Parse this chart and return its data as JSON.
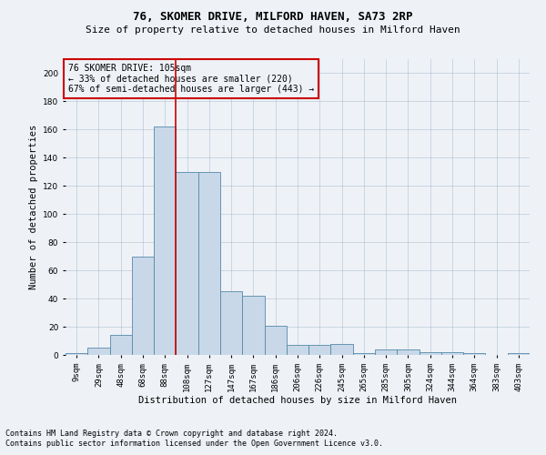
{
  "title": "76, SKOMER DRIVE, MILFORD HAVEN, SA73 2RP",
  "subtitle": "Size of property relative to detached houses in Milford Haven",
  "xlabel": "Distribution of detached houses by size in Milford Haven",
  "ylabel": "Number of detached properties",
  "footnote1": "Contains HM Land Registry data © Crown copyright and database right 2024.",
  "footnote2": "Contains public sector information licensed under the Open Government Licence v3.0.",
  "property_label": "76 SKOMER DRIVE: 105sqm",
  "annotation_line1": "← 33% of detached houses are smaller (220)",
  "annotation_line2": "67% of semi-detached houses are larger (443) →",
  "bar_color": "#c8d8e8",
  "bar_edge_color": "#5588aa",
  "marker_line_color": "#cc0000",
  "background_color": "#eef2f7",
  "categories": [
    "9sqm",
    "29sqm",
    "48sqm",
    "68sqm",
    "88sqm",
    "108sqm",
    "127sqm",
    "147sqm",
    "167sqm",
    "186sqm",
    "206sqm",
    "226sqm",
    "245sqm",
    "265sqm",
    "285sqm",
    "305sqm",
    "324sqm",
    "344sqm",
    "364sqm",
    "383sqm",
    "403sqm"
  ],
  "values": [
    1,
    5,
    14,
    70,
    162,
    130,
    130,
    45,
    42,
    21,
    7,
    7,
    8,
    1,
    4,
    4,
    2,
    2,
    1,
    0,
    1
  ],
  "ylim": [
    0,
    210
  ],
  "yticks": [
    0,
    20,
    40,
    60,
    80,
    100,
    120,
    140,
    160,
    180,
    200
  ],
  "property_bin_index": 5,
  "grid_color": "#9ab0c4",
  "annotation_box_color": "#cc0000",
  "title_fontsize": 9,
  "subtitle_fontsize": 8,
  "axis_label_fontsize": 7.5,
  "tick_fontsize": 6.5,
  "annotation_fontsize": 7,
  "footnote_fontsize": 6
}
